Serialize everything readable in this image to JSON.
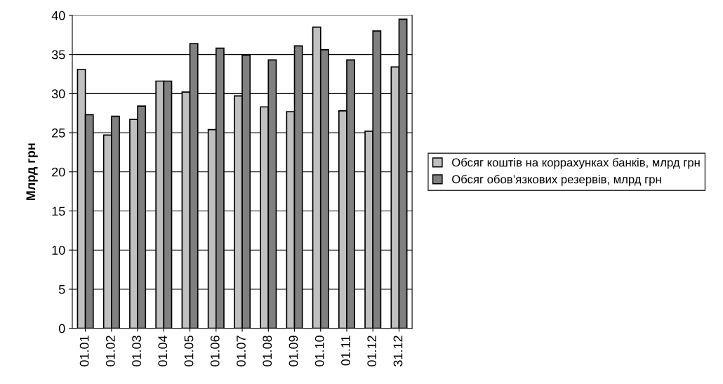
{
  "chart_data": {
    "type": "bar",
    "ylabel": "Млрд грн",
    "categories": [
      "01.01",
      "01.02",
      "01.03",
      "01.04",
      "01.05",
      "01.06",
      "01.07",
      "01.08",
      "01.09",
      "01.10",
      "01.11",
      "01.12",
      "31.12"
    ],
    "series": [
      {
        "name": "Обсяг коштів на коррахунках банків, млрд грн",
        "color": "#c0c0c0",
        "values": [
          33.1,
          24.7,
          26.7,
          31.6,
          30.2,
          25.4,
          29.7,
          28.3,
          27.7,
          38.5,
          27.8,
          25.2,
          33.4
        ]
      },
      {
        "name": "Обсяг обов’язкових резервів, млрд грн",
        "color": "#808080",
        "values": [
          27.3,
          27.1,
          28.4,
          31.6,
          36.4,
          35.8,
          34.9,
          34.3,
          36.1,
          35.6,
          34.3,
          38.0,
          39.5
        ]
      }
    ],
    "ylim": [
      0,
      40
    ],
    "yticks": [
      0,
      5,
      10,
      15,
      20,
      25,
      30,
      35,
      40
    ],
    "grid": "y",
    "legend": "right"
  }
}
